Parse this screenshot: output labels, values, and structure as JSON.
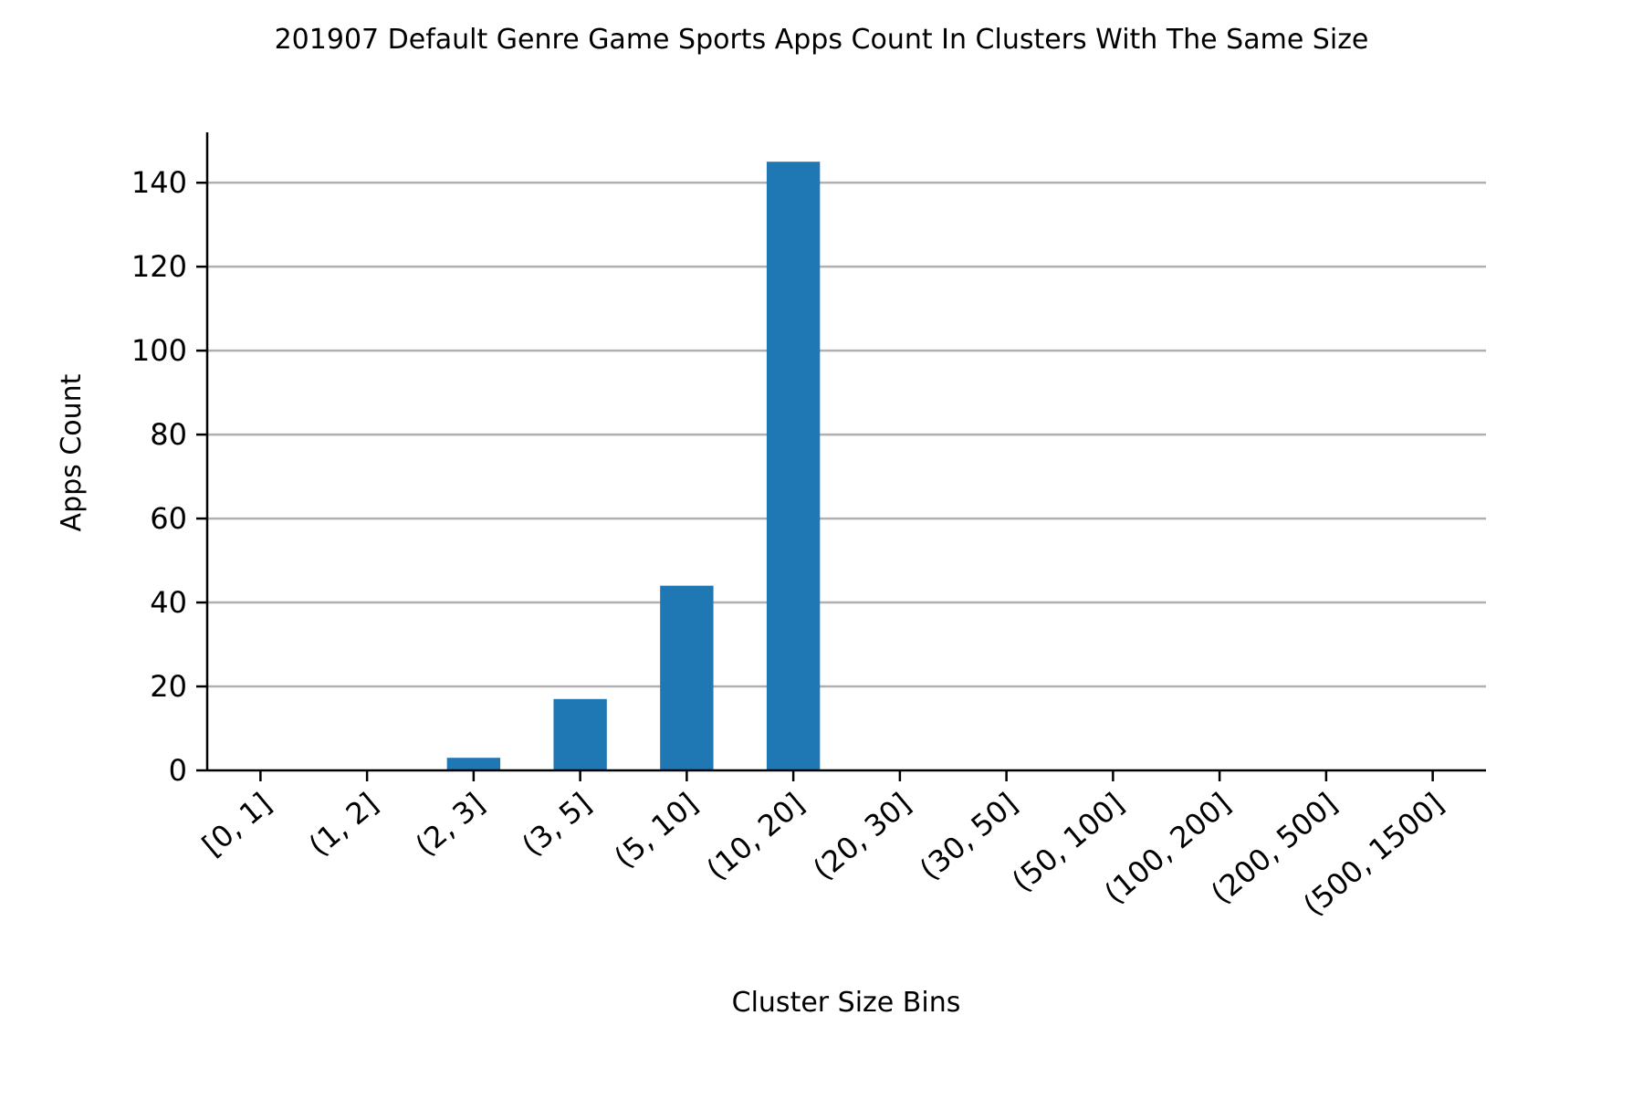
{
  "chart_data": {
    "type": "bar",
    "title": "201907 Default Genre Game Sports Apps Count In Clusters With The Same Size",
    "xlabel": "Cluster Size Bins",
    "ylabel": "Apps Count",
    "categories": [
      "[0, 1]",
      "(1, 2]",
      "(2, 3]",
      "(3, 5]",
      "(5, 10]",
      "(10, 20]",
      "(20, 30]",
      "(30, 50]",
      "(50, 100]",
      "(100, 200]",
      "(200, 500]",
      "(500, 1500]"
    ],
    "values": [
      0,
      0,
      3,
      17,
      44,
      145,
      0,
      0,
      0,
      0,
      0,
      0
    ],
    "ylim": [
      0,
      152
    ],
    "yticks": [
      0,
      20,
      40,
      60,
      80,
      100,
      120,
      140
    ],
    "grid": "horizontal",
    "bar_color": "#1f77b4",
    "grid_color": "#b0b0b0"
  }
}
